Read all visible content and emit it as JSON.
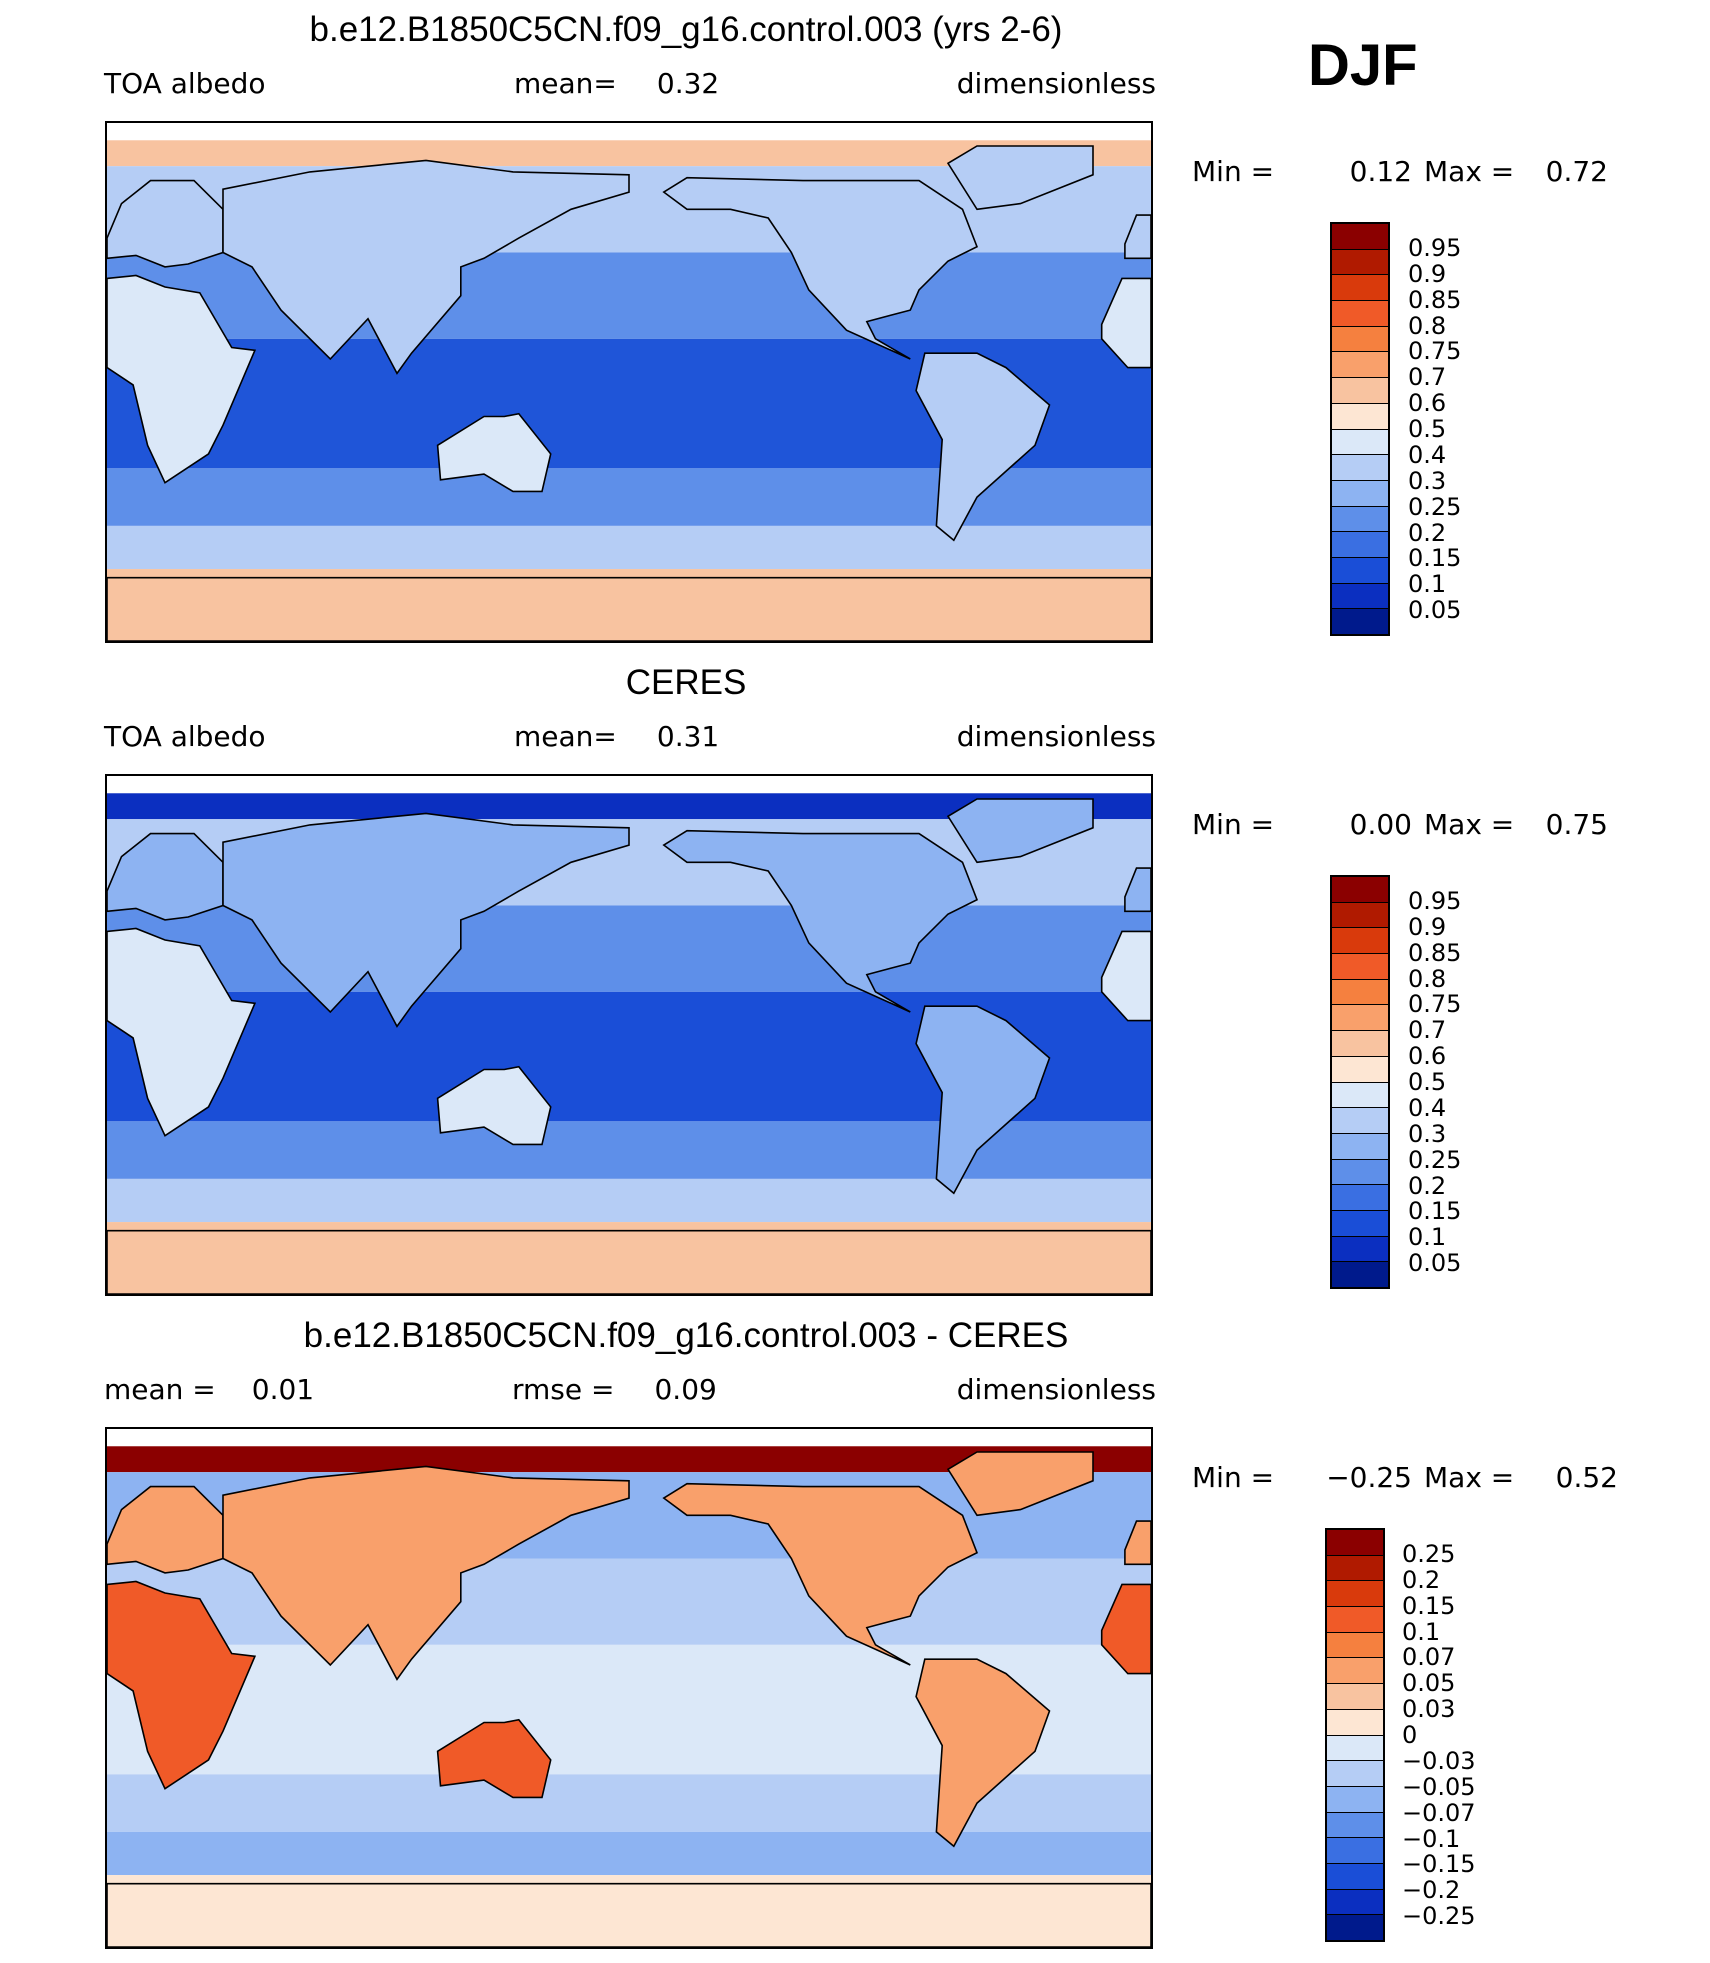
{
  "season": "DJF",
  "panels": [
    {
      "title": "b.e12.B1850C5CN.f09_g16.control.003 (yrs 2-6)",
      "left_text": "TOA  albedo",
      "mid_label": "mean=",
      "mid_value": "0.32",
      "right_text": "dimensionless",
      "min_label": "Min  =",
      "min_value": "0.12",
      "max_label": "Max  =",
      "max_value": "0.72",
      "colorbar": {
        "labels": [
          "0.95",
          "0.9",
          "0.85",
          "0.8",
          "0.75",
          "0.7",
          "0.6",
          "0.5",
          "0.4",
          "0.3",
          "0.25",
          "0.2",
          "0.15",
          "0.1",
          "0.05"
        ],
        "colors": [
          "#8b0000",
          "#b01a00",
          "#d93a0c",
          "#f05a28",
          "#f5803f",
          "#f9a06b",
          "#f8c3a0",
          "#fde6d3",
          "#dbe8f8",
          "#b5cdf5",
          "#8db3f2",
          "#5e8fe9",
          "#3a6fe2",
          "#1a4ed7",
          "#0b2fc0",
          "#001a8c"
        ]
      },
      "map": {
        "colors": {
          "ocean_tropics": "#1f55d8",
          "ocean_mid": "#5e8fe9",
          "ocean_high": "#b5cdf5",
          "land": "#b5cdf5",
          "desert": "#dbe8f8",
          "polar": "#f8c3a0",
          "ice_top": "#f8c3a0",
          "coast": "#000000"
        }
      }
    },
    {
      "title": "CERES",
      "left_text": "TOA  albedo",
      "mid_label": "mean=",
      "mid_value": "0.31",
      "right_text": "dimensionless",
      "min_label": "Min  =",
      "min_value": "0.00",
      "max_label": "Max  =",
      "max_value": "0.75",
      "colorbar": {
        "labels": [
          "0.95",
          "0.9",
          "0.85",
          "0.8",
          "0.75",
          "0.7",
          "0.6",
          "0.5",
          "0.4",
          "0.3",
          "0.25",
          "0.2",
          "0.15",
          "0.1",
          "0.05"
        ],
        "colors": [
          "#8b0000",
          "#b01a00",
          "#d93a0c",
          "#f05a28",
          "#f5803f",
          "#f9a06b",
          "#f8c3a0",
          "#fde6d3",
          "#dbe8f8",
          "#b5cdf5",
          "#8db3f2",
          "#5e8fe9",
          "#3a6fe2",
          "#1a4ed7",
          "#0b2fc0",
          "#001a8c"
        ]
      },
      "map": {
        "colors": {
          "ocean_tropics": "#1a4ed7",
          "ocean_mid": "#5e8fe9",
          "ocean_high": "#b5cdf5",
          "land": "#8db3f2",
          "desert": "#dbe8f8",
          "polar": "#f8c3a0",
          "ice_top": "#0b2fc0",
          "coast": "#000000"
        }
      }
    },
    {
      "title": "b.e12.B1850C5CN.f09_g16.control.003 - CERES",
      "left_text": "mean  =",
      "left_value": "0.01",
      "mid_label": "rmse  =",
      "mid_value": "0.09",
      "right_text": "dimensionless",
      "min_label": "Min  =",
      "min_value": "−0.25",
      "max_label": "Max  =",
      "max_value": "0.52",
      "colorbar": {
        "labels": [
          "0.25",
          "0.2",
          "0.15",
          "0.1",
          "0.07",
          "0.05",
          "0.03",
          "0",
          "−0.03",
          "−0.05",
          "−0.07",
          "−0.1",
          "−0.15",
          "−0.2",
          "−0.25"
        ],
        "colors": [
          "#8b0000",
          "#b01a00",
          "#d93a0c",
          "#f05a28",
          "#f5803f",
          "#f9a06b",
          "#f8c3a0",
          "#fde6d3",
          "#dbe8f8",
          "#b5cdf5",
          "#8db3f2",
          "#5e8fe9",
          "#3a6fe2",
          "#1a4ed7",
          "#0b2fc0",
          "#001a8c"
        ]
      },
      "map": {
        "colors": {
          "ocean_tropics": "#dbe8f8",
          "ocean_mid": "#b5cdf5",
          "ocean_high": "#8db3f2",
          "land": "#f9a06b",
          "desert": "#f05a28",
          "polar": "#fde6d3",
          "ice_top": "#8b0000",
          "coast": "#000000"
        }
      }
    }
  ]
}
